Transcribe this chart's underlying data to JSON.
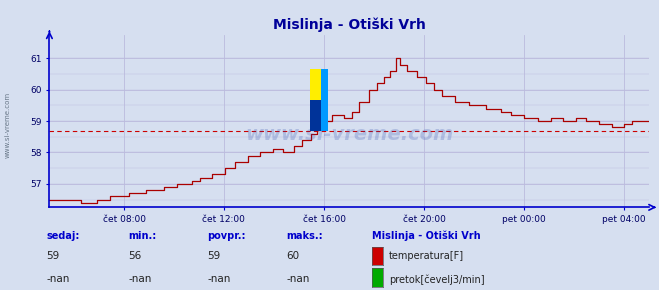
{
  "title": "Mislinja - Otiški Vrh",
  "title_color": "#000099",
  "bg_color": "#d6dff0",
  "plot_bg_color": "#d6dff0",
  "grid_color": "#bbbbdd",
  "line_color": "#aa0000",
  "axis_color": "#0000cc",
  "tick_color": "#000066",
  "avg_line_color": "#cc0000",
  "avg_value": 58.68,
  "ylim": [
    56.25,
    61.75
  ],
  "yticks": [
    57,
    58,
    59,
    60,
    61
  ],
  "xtick_labels": [
    "čet 08:00",
    "čet 12:00",
    "čet 16:00",
    "čet 20:00",
    "pet 00:00",
    "pet 04:00"
  ],
  "xtick_positions": [
    0.125,
    0.291,
    0.458,
    0.625,
    0.791,
    0.958
  ],
  "sedaj": "59",
  "min_val": "56",
  "povpr_val": "59",
  "maks_val": "60",
  "sedaj2": "-nan",
  "min_val2": "-nan",
  "povpr_val2": "-nan",
  "maks_val2": "-nan",
  "legend_title": "Mislinja - Otiški Vrh",
  "legend_color1": "#cc0000",
  "legend_color2": "#00aa00",
  "legend_label1": "temperatura[F]",
  "legend_label2": "pretok[čevelj3/min]",
  "watermark": "www.si-vreme.com",
  "sidebar_text": "www.si-vreme.com"
}
